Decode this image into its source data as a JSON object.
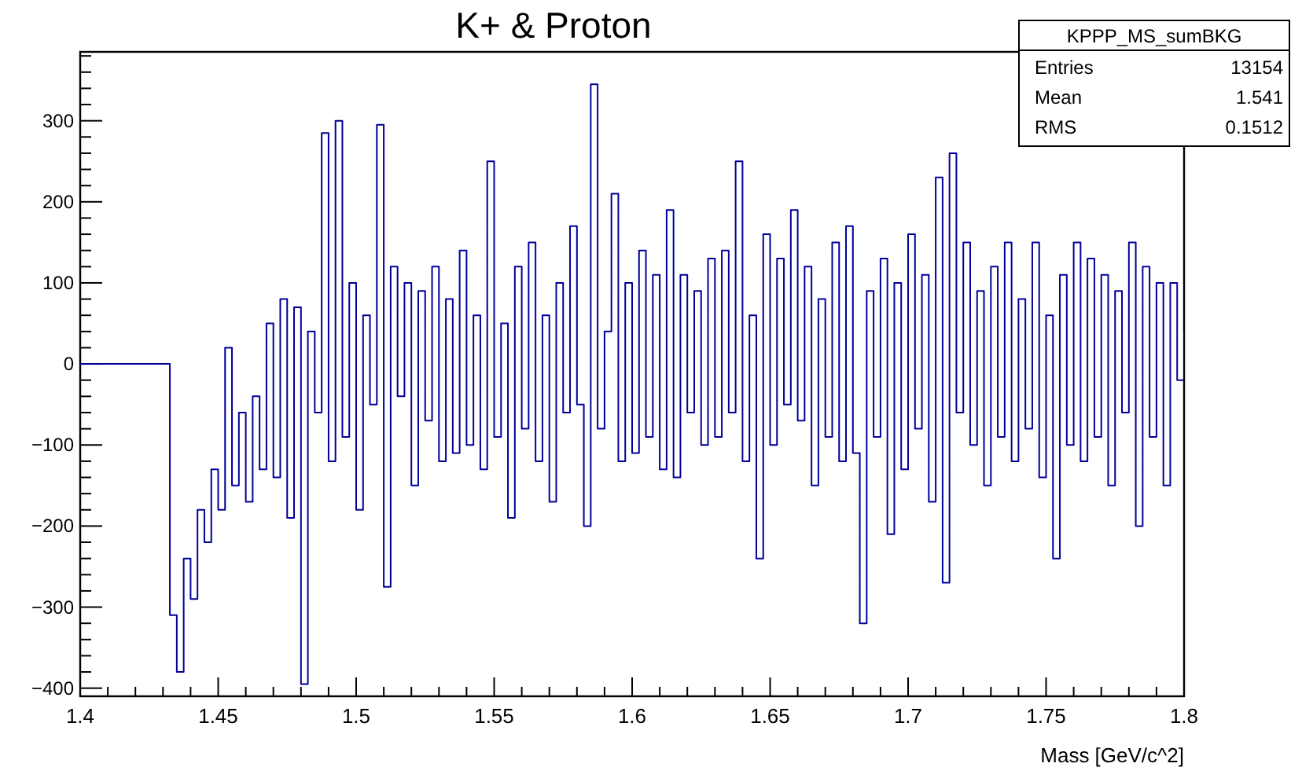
{
  "chart_data": {
    "type": "step",
    "title": "K+ & Proton",
    "xlabel": "Mass [GeV/c^2]",
    "annotations": [
      "KPPP_MS_sumBKG",
      "Entries",
      "13154",
      "Mean",
      "1.541",
      "RMS",
      "0.1512"
    ],
    "xlim": [
      1.4,
      1.8
    ],
    "ylim": [
      -410,
      385
    ],
    "xticks": [
      1.4,
      {
        "value": 1.41,
        "label": null
      },
      {
        "value": 1.42,
        "label": null
      },
      {
        "value": 1.43,
        "label": null
      },
      {
        "value": 1.44,
        "label": null
      },
      1.45,
      {
        "value": 1.46,
        "label": null
      },
      {
        "value": 1.47,
        "label": null
      },
      {
        "value": 1.48,
        "label": null
      },
      {
        "value": 1.49,
        "label": null
      },
      1.5,
      {
        "value": 1.51,
        "label": null
      },
      {
        "value": 1.52,
        "label": null
      },
      {
        "value": 1.53,
        "label": null
      },
      {
        "value": 1.54,
        "label": null
      },
      1.55,
      {
        "value": 1.56,
        "label": null
      },
      {
        "value": 1.57,
        "label": null
      },
      {
        "value": 1.58,
        "label": null
      },
      {
        "value": 1.59,
        "label": null
      },
      1.6,
      {
        "value": 1.61,
        "label": null
      },
      {
        "value": 1.62,
        "label": null
      },
      {
        "value": 1.63,
        "label": null
      },
      {
        "value": 1.64,
        "label": null
      },
      1.65,
      {
        "value": 1.66,
        "label": null
      },
      {
        "value": 1.67,
        "label": null
      },
      {
        "value": 1.68,
        "label": null
      },
      {
        "value": 1.69,
        "label": null
      },
      1.7,
      {
        "value": 1.71,
        "label": null
      },
      {
        "value": 1.72,
        "label": null
      },
      {
        "value": 1.73,
        "label": null
      },
      {
        "value": 1.74,
        "label": null
      },
      1.75,
      {
        "value": 1.76,
        "label": null
      },
      {
        "value": 1.77,
        "label": null
      },
      {
        "value": 1.78,
        "label": null
      },
      {
        "value": 1.79,
        "label": null
      },
      1.8
    ],
    "yticks": [
      {
        "value": -400,
        "label": "−400"
      },
      {
        "value": -380,
        "label": null
      },
      {
        "value": -360,
        "label": null
      },
      {
        "value": -340,
        "label": null
      },
      {
        "value": -320,
        "label": null
      },
      {
        "value": -300,
        "label": "−300"
      },
      {
        "value": -280,
        "label": null
      },
      {
        "value": -260,
        "label": null
      },
      {
        "value": -240,
        "label": null
      },
      {
        "value": -220,
        "label": null
      },
      {
        "value": -200,
        "label": "−200"
      },
      {
        "value": -180,
        "label": null
      },
      {
        "value": -160,
        "label": null
      },
      {
        "value": -140,
        "label": null
      },
      {
        "value": -120,
        "label": null
      },
      {
        "value": -100,
        "label": "−100"
      },
      {
        "value": -80,
        "label": null
      },
      {
        "value": -60,
        "label": null
      },
      {
        "value": -40,
        "label": null
      },
      {
        "value": -20,
        "label": null
      },
      0,
      {
        "value": 20,
        "label": null
      },
      {
        "value": 40,
        "label": null
      },
      {
        "value": 60,
        "label": null
      },
      {
        "value": 80,
        "label": null
      },
      100,
      {
        "value": 120,
        "label": null
      },
      {
        "value": 140,
        "label": null
      },
      {
        "value": 160,
        "label": null
      },
      {
        "value": 180,
        "label": null
      },
      200,
      {
        "value": 220,
        "label": null
      },
      {
        "value": 240,
        "label": null
      },
      {
        "value": 260,
        "label": null
      },
      {
        "value": 280,
        "label": null
      },
      300,
      {
        "value": 320,
        "label": null
      },
      {
        "value": 340,
        "label": null
      },
      {
        "value": 360,
        "label": null
      },
      {
        "value": 380,
        "label": null
      }
    ],
    "series": [
      {
        "color": "#000099",
        "x": [
          1.4,
          1.4025,
          1.405,
          1.4075,
          1.41,
          1.4125,
          1.415,
          1.4175,
          1.42,
          1.4225,
          1.425,
          1.4275,
          1.43,
          1.4325,
          1.435,
          1.4375,
          1.44,
          1.4425,
          1.445,
          1.4475,
          1.45,
          1.4525,
          1.455,
          1.4575,
          1.46,
          1.4625,
          1.465,
          1.4675,
          1.47,
          1.4725,
          1.475,
          1.4775,
          1.48,
          1.4825,
          1.485,
          1.4875,
          1.49,
          1.4925,
          1.495,
          1.4975,
          1.5,
          1.5025,
          1.505,
          1.5075,
          1.51,
          1.5125,
          1.515,
          1.5175,
          1.52,
          1.5225,
          1.525,
          1.5275,
          1.53,
          1.5325,
          1.535,
          1.5375,
          1.54,
          1.5425,
          1.545,
          1.5475,
          1.55,
          1.5525,
          1.555,
          1.5575,
          1.56,
          1.5625,
          1.565,
          1.5675,
          1.57,
          1.5725,
          1.575,
          1.5775,
          1.58,
          1.5825,
          1.585,
          1.5875,
          1.59,
          1.5925,
          1.595,
          1.5975,
          1.6,
          1.6025,
          1.605,
          1.6075,
          1.61,
          1.6125,
          1.615,
          1.6175,
          1.62,
          1.6225,
          1.625,
          1.6275,
          1.63,
          1.6325,
          1.635,
          1.6375,
          1.64,
          1.6425,
          1.645,
          1.6475,
          1.65,
          1.6525,
          1.655,
          1.6575,
          1.66,
          1.6625,
          1.665,
          1.6675,
          1.67,
          1.6725,
          1.675,
          1.6775,
          1.68,
          1.6825,
          1.685,
          1.6875,
          1.69,
          1.6925,
          1.695,
          1.6975,
          1.7,
          1.7025,
          1.705,
          1.7075,
          1.71,
          1.7125,
          1.715,
          1.7175,
          1.72,
          1.7225,
          1.725,
          1.7275,
          1.73,
          1.7325,
          1.735,
          1.7375,
          1.74,
          1.7425,
          1.745,
          1.7475,
          1.75,
          1.7525,
          1.755,
          1.7575,
          1.76,
          1.7625,
          1.765,
          1.7675,
          1.77,
          1.7725,
          1.775,
          1.7775,
          1.78,
          1.7825,
          1.785,
          1.7875,
          1.79,
          1.7925,
          1.795,
          1.7975,
          1.8
        ],
        "values": [
          0,
          0,
          0,
          0,
          0,
          0,
          0,
          0,
          0,
          0,
          0,
          0,
          0,
          -310,
          -380,
          -240,
          -290,
          -180,
          -220,
          -130,
          -180,
          20,
          -150,
          -60,
          -170,
          -40,
          -130,
          50,
          -140,
          80,
          -190,
          70,
          -395,
          40,
          -60,
          285,
          -120,
          300,
          -90,
          100,
          -180,
          60,
          -50,
          295,
          -275,
          120,
          -40,
          100,
          -150,
          90,
          -70,
          120,
          -120,
          80,
          -110,
          140,
          -100,
          60,
          -130,
          250,
          -90,
          50,
          -190,
          120,
          -80,
          150,
          -120,
          60,
          -170,
          100,
          -60,
          170,
          -50,
          -200,
          345,
          -80,
          40,
          210,
          -120,
          100,
          -110,
          140,
          -90,
          110,
          -130,
          190,
          -140,
          110,
          -60,
          90,
          -100,
          130,
          -90,
          140,
          -60,
          250,
          -120,
          60,
          -240,
          160,
          -100,
          130,
          -50,
          190,
          -70,
          120,
          -150,
          80,
          -90,
          150,
          -120,
          170,
          -110,
          -320,
          90,
          -90,
          130,
          -210,
          100,
          -130,
          160,
          -80,
          110,
          -170,
          230,
          -270,
          260,
          -60,
          150,
          -100,
          90,
          -150,
          120,
          -90,
          150,
          -120,
          80,
          -80,
          150,
          -140,
          60,
          -240,
          110,
          -100,
          150,
          -120,
          130,
          -90,
          110,
          -150,
          90,
          -60,
          150,
          -200,
          120,
          -90,
          100,
          -150,
          100,
          -20,
          40
        ]
      }
    ]
  }
}
